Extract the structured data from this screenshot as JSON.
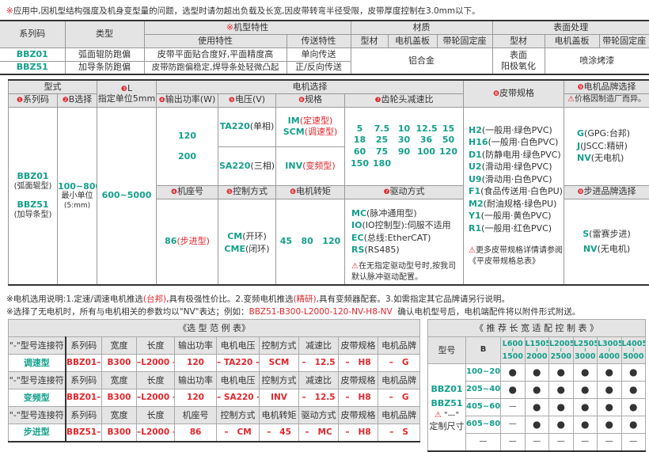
{
  "top_note": {
    "mark": "※",
    "text": "应用中,因机型结构强度及机身变型量的问题，选型时请勿超出负载及长宽,因皮带转弯半径受限，皮带厚度控制在3.0mm以下。"
  },
  "spec_table": {
    "h_series": "系列码",
    "h_type": "类型",
    "h_features_mark": "※",
    "h_features": "机型特性",
    "h_use": "使用特性",
    "h_transfer": "传送特性",
    "h_material": "材质",
    "h_surface": "表面处理",
    "h_profile": "型材",
    "h_cover": "电机盖板",
    "h_seat": "带轮固定座",
    "rows": [
      {
        "series": "BBZ01",
        "type": "弧面辊防跑偏",
        "use": "皮带平面贴合度好,平面精度高",
        "transfer": "单向传送"
      },
      {
        "series": "BBZ51",
        "type": "加导条防跑偏",
        "use": "皮带防跑偏稳定,焊导条处轻微凸起",
        "transfer": "正/反向传送"
      }
    ],
    "material": "铝合金",
    "surface_profile": "表面\n阳极氧化",
    "surface_other": "喷涂烤漆"
  },
  "selection": {
    "h_model": "型式",
    "h_motor": "电机选择",
    "n1": "❶",
    "h_series": "系列码",
    "n2": "❷",
    "h_b": "B选择",
    "n3": "❸",
    "h_l": "L",
    "h_l_sub": "指定单位5mm",
    "n4": "❹",
    "h_power": "输出功率(W)",
    "n5": "❺",
    "h_voltage": "电压(V)",
    "n6": "❻",
    "h_spec": "规格",
    "n7": "❼",
    "h_ratio": "齿轮头减速比",
    "n8": "❽",
    "h_belt": "皮带规格",
    "n9": "❾",
    "h_brand": "电机品牌选择",
    "brand_warn": "价格因制造厂而异。",
    "series": [
      {
        "code": "BBZ01",
        "desc": "(弧面辊型)"
      },
      {
        "code": "BBZ51",
        "desc": "(加导条型)"
      }
    ],
    "b_range": "100~800",
    "b_unit": "最小单位",
    "b_unit2": "(5:mm)",
    "l_range": "600~5000",
    "powers": [
      "120",
      "200"
    ],
    "voltages": [
      {
        "code": "TA220",
        "desc": "(单相)"
      },
      {
        "code": "SA220",
        "desc": "(三相)"
      }
    ],
    "specs": [
      {
        "code": "IM",
        "desc": "(定速型)"
      },
      {
        "code": "SCM",
        "desc": "(调速型)"
      },
      {
        "code": "INV",
        "desc": "(变频型)"
      }
    ],
    "ratios": [
      "5",
      "7.5",
      "10",
      "12.5",
      "15",
      "18",
      "25",
      "30",
      "36",
      "50",
      "60",
      "75",
      "90",
      "100",
      "120",
      "150",
      "180"
    ],
    "belts": [
      {
        "code": "H2",
        "desc": "(一般用·绿色PVC)"
      },
      {
        "code": "H16",
        "desc": "(一般用·白色PVC)"
      },
      {
        "code": "D1",
        "desc": "(防静电用·绿色PVC)"
      },
      {
        "code": "U2",
        "desc": "(滑动用·绿色PVC)"
      },
      {
        "code": "U9",
        "desc": "(滑动用·白色PVC)"
      },
      {
        "code": "F1",
        "desc": "(食品传送用·白色PU)"
      },
      {
        "code": "M2",
        "desc": "(耐油规格·绿色PU)"
      },
      {
        "code": "Y1",
        "desc": "(一般用·黄色PVC)"
      },
      {
        "code": "R1",
        "desc": "(一般用·红色PVC)"
      }
    ],
    "belt_note": "更多皮带规格详情请参阅《平皮带规格总表》",
    "brands": [
      {
        "code": "G",
        "desc": "(GPG:台邦)"
      },
      {
        "code": "J",
        "desc": "(JSCC:精研)"
      },
      {
        "code": "NV",
        "desc": "(无电机)"
      }
    ],
    "h_frame": "机座号",
    "h_control": "控制方式",
    "h_torque": "电机转矩",
    "h_drive": "驱动方式",
    "h_step_brand": "步进品牌选择",
    "frame": {
      "code": "86",
      "desc": "(步进型)"
    },
    "controls": [
      {
        "code": "CM",
        "desc": "(开环)"
      },
      {
        "code": "CME",
        "desc": "(闭环)"
      }
    ],
    "torques": "45   80   120",
    "drives": [
      {
        "code": "MC",
        "desc": "(脉冲通用型)"
      },
      {
        "code": "IO",
        "desc": "(IO控制型):伺服不适用"
      },
      {
        "code": "EC",
        "desc": "(总线:EtherCAT)"
      },
      {
        "code": "RS",
        "desc": "(RS485)"
      }
    ],
    "drive_note": "在无指定驱动型号时,按我司默认脉冲驱动配置。",
    "step_brands": [
      {
        "code": "S",
        "desc": "(雷赛步进)"
      },
      {
        "code": "NV",
        "desc": "(无电机)"
      }
    ]
  },
  "notes": {
    "line1": {
      "a": "※电机选用说明:1.定速/调速电机推选",
      "b": "(台邦)",
      "c": ",具有极强性价比。2.变频电机推选",
      "d": "(精研)",
      "e": ",具有变频器配套。3.如需指定其它品牌请另行说明。"
    },
    "line2": {
      "a": "※选择了无电机时，所有与电机相关的参数均以\"NV\"表达；例如：",
      "b": "BBZ51-B300-L2000-120-NV-H8-NV",
      "c": "  确认电机型号后，电机端配件将以附件形式附送。"
    }
  },
  "example": {
    "title": "《选 型 范 例 表》",
    "headers_a": [
      "\"-\"型号连接符",
      "系列码",
      "宽度",
      "长度",
      "输出功率",
      "电机电压",
      "控制方式",
      "减速比",
      "皮带规格",
      "电机品牌"
    ],
    "headers_b": [
      "\"-\"型号连接符",
      "系列码",
      "宽度",
      "长度",
      "机座号",
      "控制方式",
      "电机转矩",
      "驱动方式",
      "皮带规格",
      "电机品牌"
    ],
    "rows": [
      {
        "name": "调速型",
        "values": [
          "BBZ01–",
          "B300",
          "–L2000 –",
          "120",
          "– TA220 –",
          "SCM",
          "–   12.5",
          "–   H8",
          "–   G"
        ]
      },
      {
        "name": "变频型",
        "values": [
          "BBZ01–",
          "B300",
          "–L2000 –",
          "120",
          "– SA220 –",
          "INV",
          "–   12.5",
          "–   H8",
          "–   G"
        ]
      },
      {
        "name": "步进型",
        "values": [
          "BBZ51–",
          "B300",
          "–L2000 –",
          "86",
          "–   CM",
          "–   45",
          "–   MC",
          "–   H8",
          "–   S"
        ]
      }
    ]
  },
  "recommend": {
    "title": "《 推 荐 长 宽 适 配 控 制 表 》",
    "h_model": "型号",
    "h_b": "B",
    "l_ranges": [
      [
        "L600",
        "1500"
      ],
      [
        "L1505",
        "2000"
      ],
      [
        "L2005",
        "2500"
      ],
      [
        "L2505",
        "3000"
      ],
      [
        "L3005",
        "4000"
      ],
      [
        "L4005",
        "5000"
      ]
    ],
    "tilde": "≀",
    "models": [
      "BBZ01",
      "BBZ51"
    ],
    "dash_note": "\"—\"",
    "custom": "定制尺寸",
    "rows": [
      {
        "b": "100~200",
        "cells": [
          "●",
          "●",
          "●",
          "●",
          "●",
          "●"
        ]
      },
      {
        "b": "205~400",
        "cells": [
          "●",
          "●",
          "●",
          "●",
          "●",
          "●"
        ]
      },
      {
        "b": "405~600",
        "cells": [
          "—",
          "●",
          "●",
          "●",
          "●",
          "●"
        ]
      },
      {
        "b": "605~800",
        "cells": [
          "—",
          "●",
          "●",
          "●",
          "●",
          "●"
        ]
      },
      {
        "b": "—",
        "cells": [
          "—",
          "—",
          "—",
          "—",
          "—",
          "—"
        ]
      }
    ]
  },
  "colors": {
    "green": "#14a08b",
    "red": "#e2262c",
    "header": "#e4e4e4"
  }
}
